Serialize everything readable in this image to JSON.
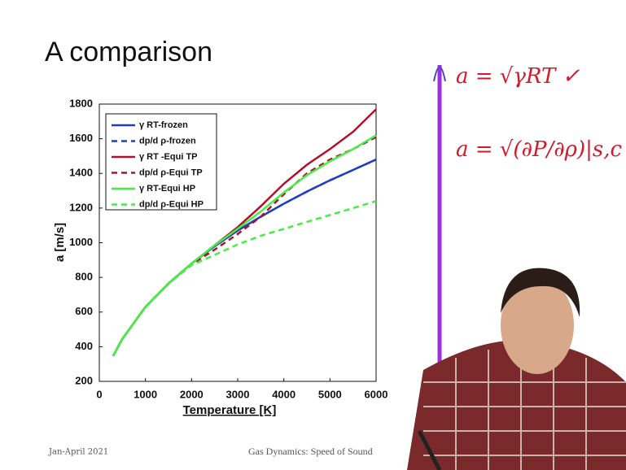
{
  "chart_data": {
    "type": "line",
    "title": "A comparison",
    "xlabel": "Temperature [K]",
    "ylabel": "a [m/s]",
    "x": [
      300,
      500,
      1000,
      1500,
      2000,
      2500,
      3000,
      3500,
      4000,
      4500,
      5000,
      5500,
      6000
    ],
    "series": [
      {
        "name": "γ RT-frozen",
        "color": "#1f3fbf",
        "linestyle": "solid",
        "values": [
          347,
          445,
          630,
          765,
          880,
          980,
          1070,
          1150,
          1225,
          1295,
          1360,
          1420,
          1480
        ]
      },
      {
        "name": "dp/d ρ-frozen",
        "color": "#1f3fbf",
        "linestyle": "dashed",
        "values": [
          347,
          445,
          630,
          765,
          880,
          980,
          1070,
          1150,
          1225,
          1295,
          1360,
          1420,
          1480
        ]
      },
      {
        "name": "γ RT -Equi TP",
        "color": "#b0102a",
        "linestyle": "solid",
        "values": [
          347,
          445,
          630,
          765,
          880,
          985,
          1090,
          1210,
          1340,
          1450,
          1540,
          1640,
          1770
        ]
      },
      {
        "name": "dp/d ρ-Equi TP",
        "color": "#b0102a",
        "linestyle": "dashed",
        "values": [
          347,
          445,
          630,
          765,
          875,
          960,
          1050,
          1150,
          1280,
          1400,
          1480,
          1540,
          1610
        ]
      },
      {
        "name": "γ RT-Equi HP",
        "color": "#44ee44",
        "linestyle": "solid",
        "values": [
          347,
          445,
          630,
          765,
          880,
          985,
          1080,
          1180,
          1290,
          1390,
          1470,
          1540,
          1620
        ]
      },
      {
        "name": "dp/d ρ-Equi HP",
        "color": "#44ee44",
        "linestyle": "dashed",
        "values": [
          347,
          445,
          630,
          765,
          870,
          930,
          990,
          1040,
          1080,
          1120,
          1160,
          1200,
          1240
        ]
      }
    ],
    "xlim": [
      0,
      6000
    ],
    "xticks": [
      0,
      1000,
      2000,
      3000,
      4000,
      5000,
      6000
    ],
    "ylim": [
      200,
      1800
    ],
    "yticks": [
      200,
      400,
      600,
      800,
      1000,
      1200,
      1400,
      1600,
      1800
    ],
    "grid": false,
    "legend": "upper left",
    "annotations": [
      "a = √γRT ✓",
      "a = √(∂P/∂ρ)|s,c"
    ]
  },
  "footer": {
    "date": "Jan-April 2021",
    "course": "Gas Dynamics: Speed of Sound"
  }
}
